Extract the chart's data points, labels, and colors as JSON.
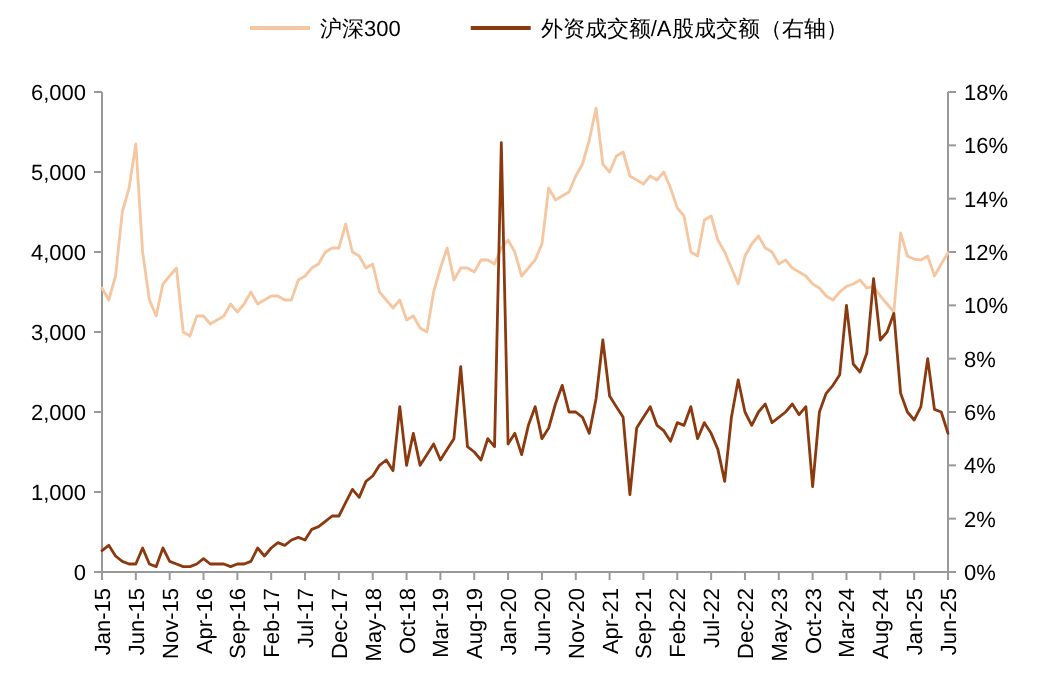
{
  "chart_data": {
    "type": "line",
    "legend": "top",
    "x": [
      "2015-01",
      "2015-02",
      "2015-03",
      "2015-04",
      "2015-05",
      "2015-06",
      "2015-07",
      "2015-08",
      "2015-09",
      "2015-10",
      "2015-11",
      "2015-12",
      "2016-01",
      "2016-02",
      "2016-03",
      "2016-04",
      "2016-05",
      "2016-06",
      "2016-07",
      "2016-08",
      "2016-09",
      "2016-10",
      "2016-11",
      "2016-12",
      "2017-01",
      "2017-02",
      "2017-03",
      "2017-04",
      "2017-05",
      "2017-06",
      "2017-07",
      "2017-08",
      "2017-09",
      "2017-10",
      "2017-11",
      "2017-12",
      "2018-01",
      "2018-02",
      "2018-03",
      "2018-04",
      "2018-05",
      "2018-06",
      "2018-07",
      "2018-08",
      "2018-09",
      "2018-10",
      "2018-11",
      "2018-12",
      "2019-01",
      "2019-02",
      "2019-03",
      "2019-04",
      "2019-05",
      "2019-06",
      "2019-07",
      "2019-08",
      "2019-09",
      "2019-10",
      "2019-11",
      "2019-12",
      "2020-01",
      "2020-02",
      "2020-03",
      "2020-04",
      "2020-05",
      "2020-06",
      "2020-07",
      "2020-08",
      "2020-09",
      "2020-10",
      "2020-11",
      "2020-12",
      "2021-01",
      "2021-02",
      "2021-03",
      "2021-04",
      "2021-05",
      "2021-06",
      "2021-07",
      "2021-08",
      "2021-09",
      "2021-10",
      "2021-11",
      "2021-12",
      "2022-01",
      "2022-02",
      "2022-03",
      "2022-04",
      "2022-05",
      "2022-06",
      "2022-07",
      "2022-08",
      "2022-09",
      "2022-10",
      "2022-11",
      "2022-12",
      "2023-01",
      "2023-02",
      "2023-03",
      "2023-04",
      "2023-05",
      "2023-06",
      "2023-07",
      "2023-08",
      "2023-09",
      "2023-10",
      "2023-11",
      "2023-12",
      "2024-01",
      "2024-02",
      "2024-03",
      "2024-04",
      "2024-05",
      "2024-06",
      "2024-07",
      "2024-08",
      "2024-09",
      "2024-10",
      "2024-11",
      "2024-12",
      "2025-01",
      "2025-02",
      "2025-03",
      "2025-04",
      "2025-05",
      "2025-06"
    ],
    "series": [
      {
        "name": "沪深300",
        "color": "#f5c6a0",
        "values": [
          3550,
          3400,
          3700,
          4500,
          4800,
          5350,
          4000,
          3400,
          3200,
          3600,
          3700,
          3800,
          3000,
          2950,
          3200,
          3200,
          3100,
          3150,
          3200,
          3350,
          3250,
          3350,
          3500,
          3350,
          3400,
          3450,
          3450,
          3400,
          3400,
          3650,
          3700,
          3800,
          3850,
          4000,
          4050,
          4050,
          4350,
          4000,
          3950,
          3800,
          3850,
          3500,
          3400,
          3300,
          3400,
          3150,
          3200,
          3050,
          3000,
          3500,
          3800,
          4050,
          3650,
          3800,
          3800,
          3750,
          3900,
          3900,
          3850,
          4050,
          4150,
          4000,
          3700,
          3800,
          3900,
          4100,
          4800,
          4650,
          4700,
          4750,
          4950,
          5100,
          5400,
          5800,
          5100,
          5000,
          5200,
          5250,
          4950,
          4900,
          4850,
          4950,
          4900,
          5000,
          4800,
          4550,
          4450,
          4000,
          3950,
          4400,
          4450,
          4150,
          4000,
          3800,
          3600,
          3950,
          4100,
          4200,
          4050,
          4000,
          3850,
          3900,
          3800,
          3750,
          3700,
          3600,
          3550,
          3450,
          3400,
          3500,
          3570,
          3600,
          3650,
          3550,
          3570,
          3450,
          3350,
          3250,
          4240,
          3950,
          3910,
          3900,
          3950,
          3700,
          3850,
          3990
        ]
      },
      {
        "name": "外资成交额/A股成交额（右轴）",
        "color": "#8b3a0f",
        "axis": "y2",
        "values": [
          0.8,
          1.0,
          0.6,
          0.4,
          0.3,
          0.3,
          0.9,
          0.3,
          0.2,
          0.9,
          0.4,
          0.3,
          0.2,
          0.2,
          0.3,
          0.5,
          0.3,
          0.3,
          0.3,
          0.2,
          0.3,
          0.3,
          0.4,
          0.9,
          0.6,
          0.9,
          1.1,
          1.0,
          1.2,
          1.3,
          1.2,
          1.6,
          1.7,
          1.9,
          2.1,
          2.1,
          2.6,
          3.1,
          2.8,
          3.4,
          3.6,
          4.0,
          4.2,
          3.8,
          6.2,
          4.0,
          5.2,
          4.0,
          4.4,
          4.8,
          4.2,
          4.6,
          5.0,
          7.7,
          4.7,
          4.5,
          4.2,
          5.0,
          4.7,
          16.1,
          4.8,
          5.2,
          4.4,
          5.5,
          6.2,
          5.0,
          5.4,
          6.3,
          7.0,
          6.0,
          6.0,
          5.8,
          5.2,
          6.5,
          8.7,
          6.6,
          6.2,
          5.8,
          2.9,
          5.4,
          5.8,
          6.2,
          5.5,
          5.3,
          4.9,
          5.6,
          5.5,
          6.2,
          5.0,
          5.6,
          5.2,
          4.6,
          3.4,
          5.8,
          7.2,
          6.0,
          5.5,
          6.0,
          6.3,
          5.6,
          5.8,
          6.0,
          6.3,
          5.9,
          6.2,
          3.2,
          6.0,
          6.7,
          7.0,
          7.4,
          10.0,
          7.8,
          7.5,
          8.2,
          11.0,
          8.7,
          9.0,
          9.7,
          6.7,
          6.0,
          5.7,
          6.2,
          8.0,
          6.1,
          6.0,
          5.2
        ]
      }
    ],
    "xlim": [
      "2015-01",
      "2025-06"
    ],
    "xticks": [
      {
        "value": "2015-01",
        "label": "Jan-15"
      },
      {
        "value": "2015-06",
        "label": "Jun-15"
      },
      {
        "value": "2015-11",
        "label": "Nov-15"
      },
      {
        "value": "2016-04",
        "label": "Apr-16"
      },
      {
        "value": "2016-09",
        "label": "Sep-16"
      },
      {
        "value": "2017-02",
        "label": "Feb-17"
      },
      {
        "value": "2017-07",
        "label": "Jul-17"
      },
      {
        "value": "2017-12",
        "label": "Dec-17"
      },
      {
        "value": "2018-05",
        "label": "May-18"
      },
      {
        "value": "2018-10",
        "label": "Oct-18"
      },
      {
        "value": "2019-03",
        "label": "Mar-19"
      },
      {
        "value": "2019-08",
        "label": "Aug-19"
      },
      {
        "value": "2020-01",
        "label": "Jan-20"
      },
      {
        "value": "2020-06",
        "label": "Jun-20"
      },
      {
        "value": "2020-11",
        "label": "Nov-20"
      },
      {
        "value": "2021-04",
        "label": "Apr-21"
      },
      {
        "value": "2021-09",
        "label": "Sep-21"
      },
      {
        "value": "2022-02",
        "label": "Feb-22"
      },
      {
        "value": "2022-07",
        "label": "Jul-22"
      },
      {
        "value": "2022-12",
        "label": "Dec-22"
      },
      {
        "value": "2023-05",
        "label": "May-23"
      },
      {
        "value": "2023-10",
        "label": "Oct-23"
      },
      {
        "value": "2024-03",
        "label": "Mar-24"
      },
      {
        "value": "2024-08",
        "label": "Aug-24"
      },
      {
        "value": "2025-01",
        "label": "Jan-25"
      },
      {
        "value": "2025-06",
        "label": "Jun-25"
      }
    ],
    "ylim": [
      0,
      6000
    ],
    "yticks": [
      0,
      {
        "value": 1000,
        "label": "1,000"
      },
      {
        "value": 2000,
        "label": "2,000"
      },
      {
        "value": 3000,
        "label": "3,000"
      },
      {
        "value": 4000,
        "label": "4,000"
      },
      {
        "value": 5000,
        "label": "5,000"
      },
      {
        "value": 6000,
        "label": "6,000"
      }
    ],
    "y2lim": [
      0,
      18
    ],
    "y2ticks": [
      {
        "value": 0,
        "label": "0%"
      },
      {
        "value": 2,
        "label": "2%"
      },
      {
        "value": 4,
        "label": "4%"
      },
      {
        "value": 6,
        "label": "6%"
      },
      {
        "value": 8,
        "label": "8%"
      },
      {
        "value": 10,
        "label": "10%"
      },
      {
        "value": 12,
        "label": "12%"
      },
      {
        "value": 14,
        "label": "14%"
      },
      {
        "value": 16,
        "label": "16%"
      },
      {
        "value": 18,
        "label": "18%"
      }
    ]
  }
}
